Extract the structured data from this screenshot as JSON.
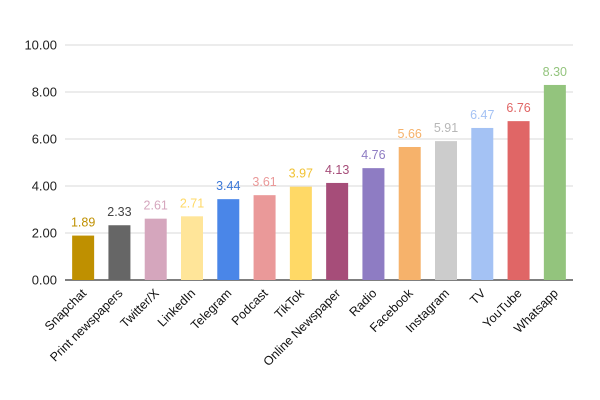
{
  "chart_data": {
    "type": "bar",
    "title": "",
    "xlabel": "",
    "ylabel": "",
    "ylim": [
      0,
      10
    ],
    "yticks": [
      0,
      2,
      4,
      6,
      8,
      10
    ],
    "ytick_labels": [
      "0.00",
      "2.00",
      "4.00",
      "6.00",
      "8.00",
      "10.00"
    ],
    "grid": true,
    "legend": "none",
    "categories": [
      "Snapchat",
      "Print newspapers",
      "Twitter/X",
      "LinkedIn",
      "Telegram",
      "Podcast",
      "TikTok",
      "Online Newspaper",
      "Radio",
      "Facebook",
      "Instagram",
      "TV",
      "YouTube",
      "Whatsapp"
    ],
    "values": [
      1.89,
      2.33,
      2.61,
      2.71,
      3.44,
      3.61,
      3.97,
      4.13,
      4.76,
      5.66,
      5.91,
      6.47,
      6.76,
      8.3
    ],
    "value_labels": [
      "1.89",
      "2.33",
      "2.61",
      "2.71",
      "3.44",
      "3.61",
      "3.97",
      "4.13",
      "4.76",
      "5.66",
      "5.91",
      "6.47",
      "6.76",
      "8.30"
    ],
    "bar_colors": [
      "#bf9000",
      "#666666",
      "#d5a6bd",
      "#ffe599",
      "#4a86e8",
      "#ea9999",
      "#ffd966",
      "#a64d79",
      "#8e7cc3",
      "#f6b26b",
      "#cccccc",
      "#a4c2f4",
      "#e06666",
      "#93c47d"
    ],
    "label_colors": [
      "#bf9000",
      "#444444",
      "#d5a6bd",
      "#ffd966",
      "#3c78d8",
      "#ea9999",
      "#f1c232",
      "#a64d79",
      "#8e7cc3",
      "#f6b26b",
      "#b7b7b7",
      "#a4c2f4",
      "#e06666",
      "#93c47d"
    ],
    "grid_color": "#d9d9d9",
    "axis_color": "#333333"
  }
}
